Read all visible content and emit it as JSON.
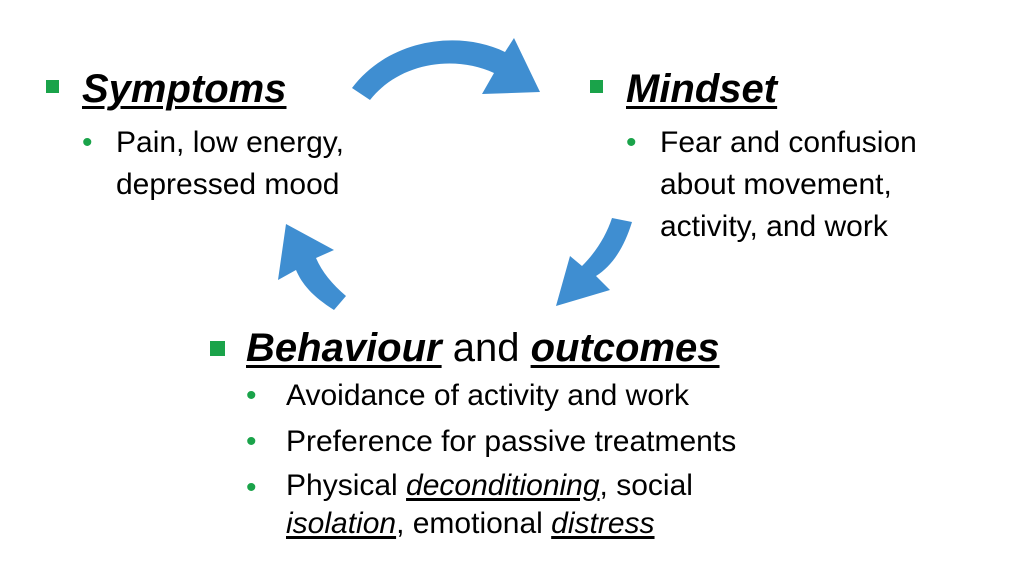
{
  "colors": {
    "accent_green": "#1aa34a",
    "arrow_blue": "#3f8ed1",
    "text": "#000000"
  },
  "symptoms": {
    "title": "Symptoms",
    "bullet_line1": "Pain, low energy,",
    "bullet_line2": "depressed mood"
  },
  "mindset": {
    "title": "Mindset",
    "bullet_line1": "Fear and confusion",
    "bullet_line2": "about movement,",
    "bullet_line3": "activity, and work"
  },
  "behaviour": {
    "title_part1": "Behaviour",
    "title_joiner": " and ",
    "title_part2": "outcomes",
    "bullets": [
      "Avoidance of activity and work",
      "Preference for passive treatments"
    ],
    "bullet3": {
      "t1": "Physical ",
      "t2": "deconditioning",
      "t3": ", social",
      "t4": "isolation",
      "t5": ", emotional ",
      "t6": "distress"
    }
  },
  "bullet_glyph": "•"
}
